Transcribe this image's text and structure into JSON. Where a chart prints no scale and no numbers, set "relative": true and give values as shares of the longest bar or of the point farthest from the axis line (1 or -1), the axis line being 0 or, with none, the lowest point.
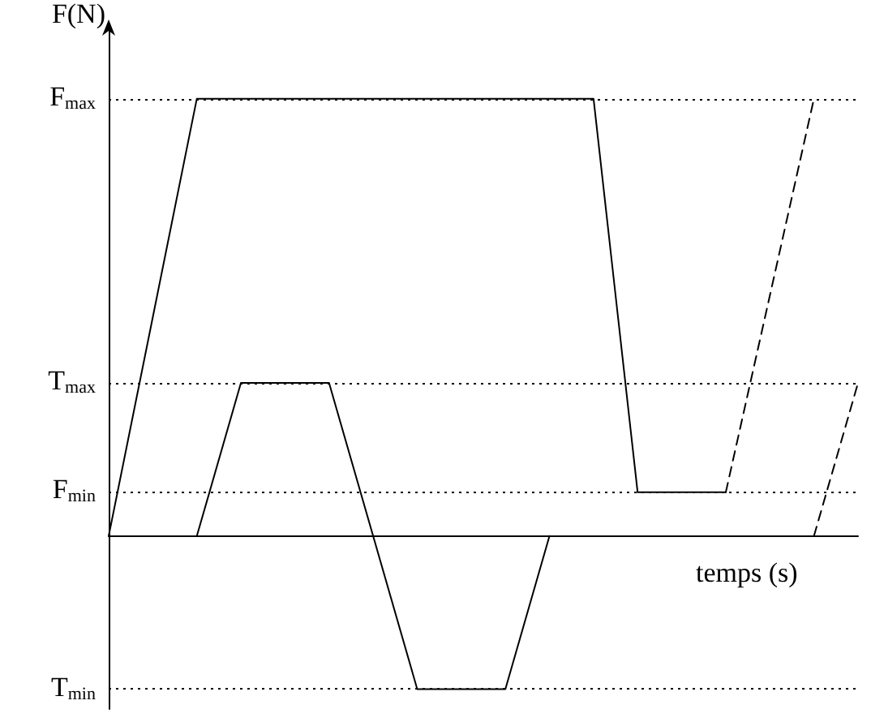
{
  "chart_data": {
    "type": "line",
    "relative": true,
    "xlabel": "temps (s)",
    "ylabel": "F(N)",
    "categories": [
      null,
      null,
      null,
      null,
      null,
      null,
      null,
      null,
      null,
      null,
      null,
      null,
      null,
      null,
      null,
      null,
      null,
      null
    ],
    "series": [
      {
        "color": "#000000",
        "line_style": "solid",
        "values": [
          0,
          0.5,
          1,
          1,
          1,
          1,
          1,
          1,
          1,
          1,
          1,
          1,
          0.1,
          0.1,
          0.1,
          null,
          null,
          null
        ]
      },
      {
        "color": "#000000",
        "line_style": "dashed",
        "values": [
          null,
          null,
          null,
          null,
          null,
          null,
          null,
          null,
          null,
          null,
          null,
          null,
          null,
          null,
          0.1,
          0.55,
          1,
          null
        ]
      },
      {
        "color": "#000000",
        "line_style": "solid",
        "values": [
          null,
          null,
          0,
          0.35,
          0.35,
          0.35,
          0,
          -0.35,
          -0.35,
          -0.35,
          0,
          null,
          null,
          null,
          null,
          null,
          null,
          null
        ]
      },
      {
        "color": "#000000",
        "line_style": "dashed",
        "values": [
          null,
          null,
          null,
          null,
          null,
          null,
          null,
          null,
          null,
          null,
          null,
          null,
          null,
          null,
          null,
          null,
          0,
          0.35
        ]
      }
    ],
    "ref_lines": [
      {
        "axis": "y",
        "value": 1,
        "label": "F$_{max}$",
        "line_style": "dotted"
      },
      {
        "axis": "y",
        "value": 0.35,
        "label": "T$_{max}$",
        "line_style": "dotted"
      },
      {
        "axis": "y",
        "value": 0.1,
        "label": "F$_{min}$",
        "line_style": "dotted"
      },
      {
        "axis": "y",
        "value": -0.35,
        "label": "T$_{min}$",
        "line_style": "dotted"
      }
    ],
    "marker": "none",
    "grid": false
  }
}
